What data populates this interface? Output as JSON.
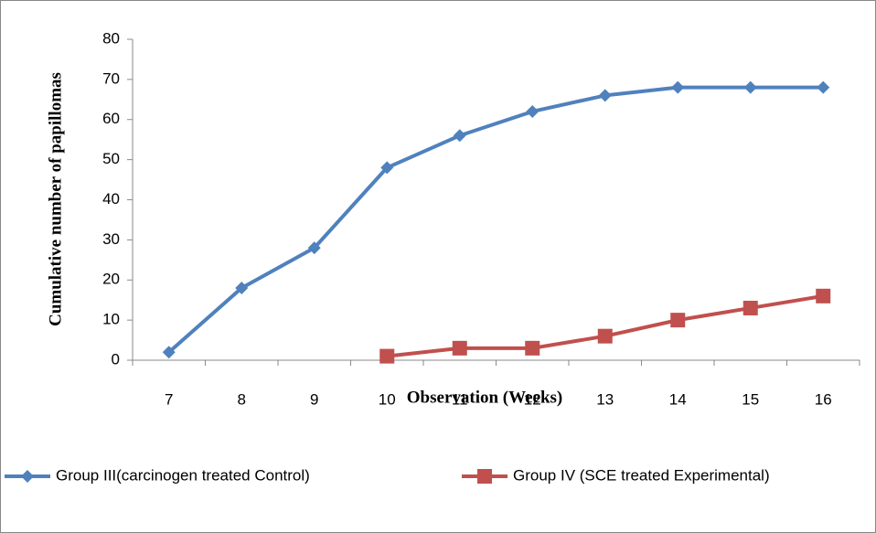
{
  "chart_data": {
    "type": "line",
    "x_label": "Observation  (Weeks)",
    "y_label": "Cumulative number of papillomas",
    "categories": [
      "7",
      "8",
      "9",
      "10",
      "11",
      "12",
      "13",
      "14",
      "15",
      "16"
    ],
    "series": [
      {
        "name": "Group III(carcinogen treated Control)",
        "color": "#4f81bd",
        "marker": "diamond",
        "values": [
          2,
          18,
          28,
          48,
          56,
          62,
          66,
          68,
          68,
          68
        ]
      },
      {
        "name": "Group IV (SCE treated Experimental)",
        "color": "#c0504d",
        "marker": "square",
        "values": [
          null,
          null,
          null,
          1,
          3,
          3,
          6,
          10,
          13,
          16
        ]
      }
    ],
    "ylim": [
      0,
      80
    ],
    "yticks": [
      0,
      10,
      20,
      30,
      40,
      50,
      60,
      70,
      80
    ],
    "grid": false,
    "legend": "bottom"
  }
}
